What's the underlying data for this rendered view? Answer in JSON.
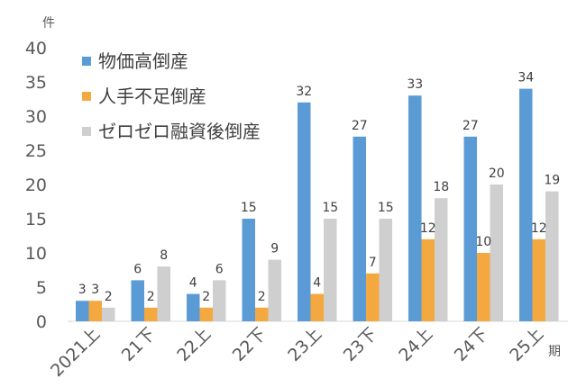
{
  "chart_data": {
    "type": "bar",
    "y_unit": "件",
    "x_unit": "期",
    "categories": [
      "2021上",
      "21下",
      "22上",
      "22下",
      "23上",
      "23下",
      "24上",
      "24下",
      "25上"
    ],
    "series": [
      {
        "name": "物価高倒産",
        "color": "#5b9bd5",
        "values": [
          3,
          6,
          4,
          15,
          32,
          27,
          33,
          27,
          34
        ]
      },
      {
        "name": "人手不足倒産",
        "color": "#f4a940",
        "values": [
          3,
          2,
          2,
          2,
          4,
          7,
          12,
          10,
          12
        ]
      },
      {
        "name": "ゼロゼロ融資後倒産",
        "color": "#cfcfcf",
        "values": [
          2,
          8,
          6,
          9,
          15,
          15,
          18,
          20,
          19
        ]
      }
    ],
    "ylim": [
      0,
      40
    ],
    "yticks": [
      0,
      5,
      10,
      15,
      20,
      25,
      30,
      35,
      40
    ],
    "grid": false,
    "legend": "top-left"
  }
}
